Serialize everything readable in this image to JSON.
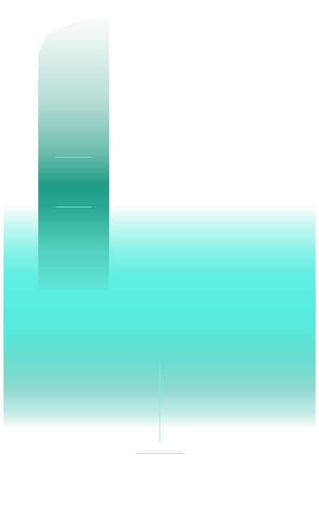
{
  "theme": {
    "background": "#ffffff",
    "accent_dark": "#1f9b87",
    "accent_light": "#5ee5d6",
    "line_color": "#8ce9dd"
  },
  "shapes": {
    "vertical_strip": "teal-gradient-strip",
    "horizontal_band": "cyan-gradient-band",
    "connector": "thin-cyan-line"
  }
}
